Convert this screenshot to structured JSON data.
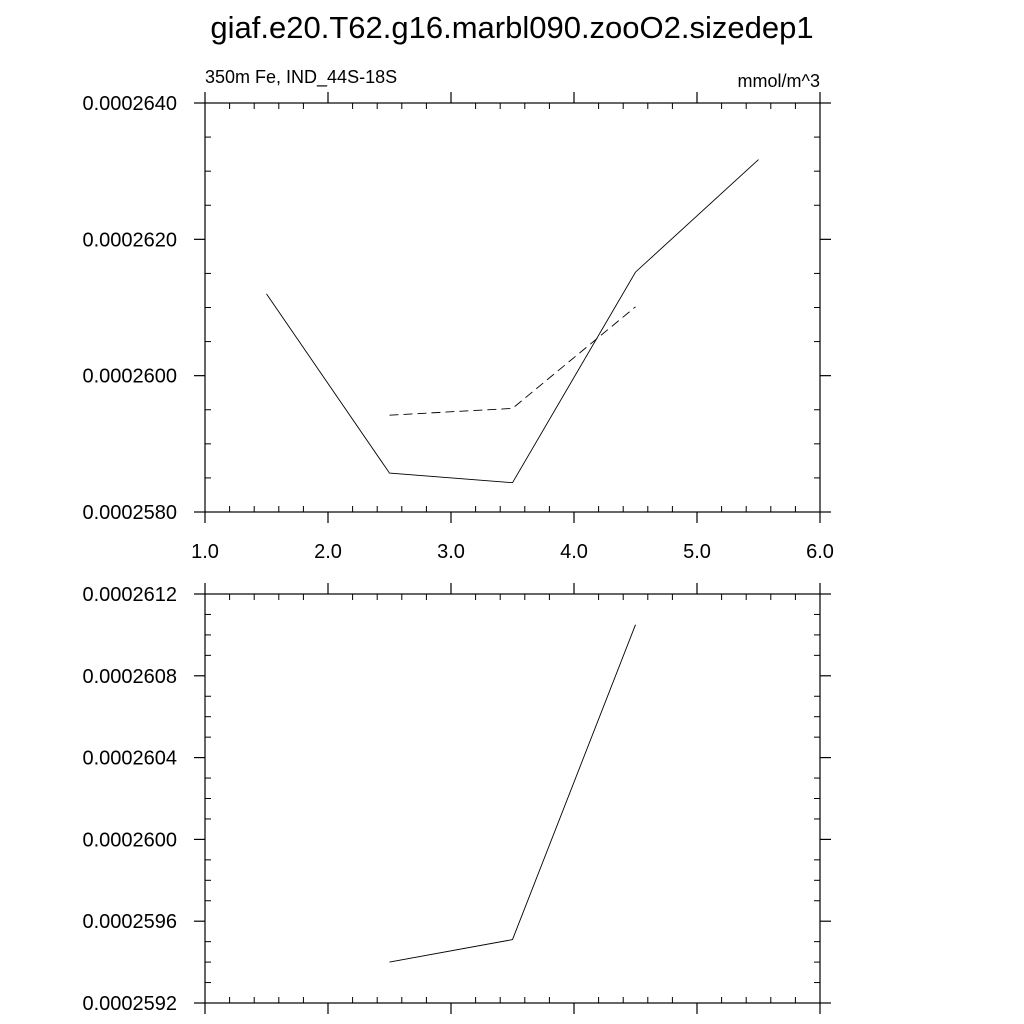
{
  "title": "giaf.e20.T62.g16.marbl090.zooO2.sizedep1",
  "chart_data": [
    {
      "type": "line",
      "left_label": "350m Fe, IND_44S-18S",
      "right_label": "mmol/m^3",
      "xlim": [
        1.0,
        6.0
      ],
      "ylim": [
        0.000258,
        0.000264
      ],
      "x_ticks": [
        1.0,
        2.0,
        3.0,
        4.0,
        5.0,
        6.0
      ],
      "x_tick_labels": [
        "1.0",
        "2.0",
        "3.0",
        "4.0",
        "5.0",
        "6.0"
      ],
      "y_ticks": [
        0.000258,
        0.00026,
        0.000262,
        0.000264
      ],
      "y_tick_labels": [
        "0.0002580",
        "0.0002600",
        "0.0002620",
        "0.0002640"
      ],
      "grid": false,
      "series": [
        {
          "style": "solid",
          "x": [
            1.5,
            2.5,
            3.5,
            4.5,
            5.5
          ],
          "values": [
            0.0002612,
            0.00025857,
            0.00025843,
            0.00026152,
            0.00026317
          ]
        },
        {
          "style": "dashed",
          "x": [
            2.5,
            3.5,
            4.5
          ],
          "values": [
            0.00025942,
            0.00025952,
            0.00026101
          ]
        }
      ]
    },
    {
      "type": "line",
      "xlim": [
        1.0,
        6.0
      ],
      "ylim": [
        0.0002592,
        0.0002612
      ],
      "x_ticks": [
        1.0,
        2.0,
        3.0,
        4.0,
        5.0,
        6.0
      ],
      "y_ticks": [
        0.0002592,
        0.0002596,
        0.00026,
        0.0002604,
        0.0002608,
        0.0002612
      ],
      "y_tick_labels": [
        "0.0002592",
        "0.0002596",
        "0.0002600",
        "0.0002604",
        "0.0002608",
        "0.0002612"
      ],
      "grid": false,
      "series": [
        {
          "style": "solid",
          "x": [
            2.5,
            3.5,
            4.5
          ],
          "values": [
            0.0002594,
            0.00025951,
            0.00026105
          ]
        }
      ]
    }
  ]
}
